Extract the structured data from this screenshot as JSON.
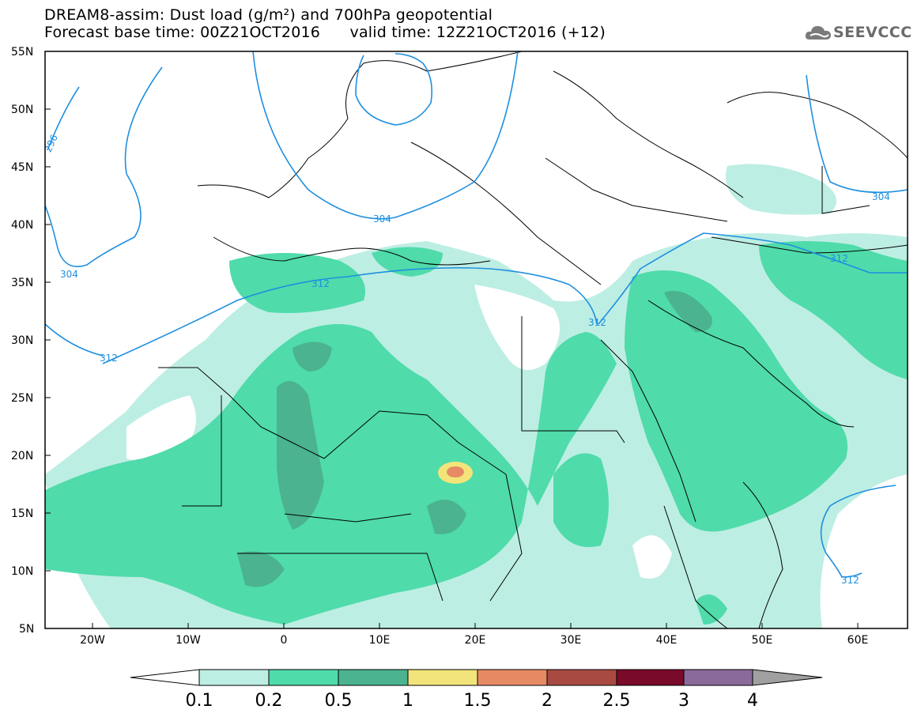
{
  "header": {
    "title_line1": "DREAM8-assim: Dust load (g/m²) and 700hPa geopotential",
    "title_line2": "Forecast base time: 00Z21OCT2016      valid time: 12Z21OCT2016 (+12)"
  },
  "logo": {
    "text": "SEEVCCC",
    "icon": "cloud-logo-icon"
  },
  "map": {
    "lat_labels": [
      "55N",
      "50N",
      "45N",
      "40N",
      "35N",
      "30N",
      "25N",
      "20N",
      "15N",
      "10N",
      "5N"
    ],
    "lon_labels": [
      "20W",
      "10W",
      "0",
      "10E",
      "20E",
      "30E",
      "40E",
      "50E",
      "60E"
    ],
    "contour_labels": [
      "296",
      "304",
      "304",
      "304",
      "312",
      "312",
      "312",
      "312",
      "312"
    ],
    "colors": {
      "border": "#000000",
      "contour": "#1e8fe0",
      "dust_01": "#bdeee3",
      "dust_02": "#4fdbaa",
      "dust_05": "#4bb38f",
      "dust_1": "#f2e47a",
      "dust_15": "#e68a64"
    }
  },
  "colorbar": {
    "labels": [
      "0.1",
      "0.2",
      "0.5",
      "1",
      "1.5",
      "2",
      "2.5",
      "3",
      "4"
    ],
    "colors": [
      "#ffffff",
      "#bdeee3",
      "#4fdbaa",
      "#4bb38f",
      "#f2e47a",
      "#e68a64",
      "#a94a42",
      "#7a0a2a",
      "#8a6a9a",
      "#a0a0a0"
    ]
  }
}
